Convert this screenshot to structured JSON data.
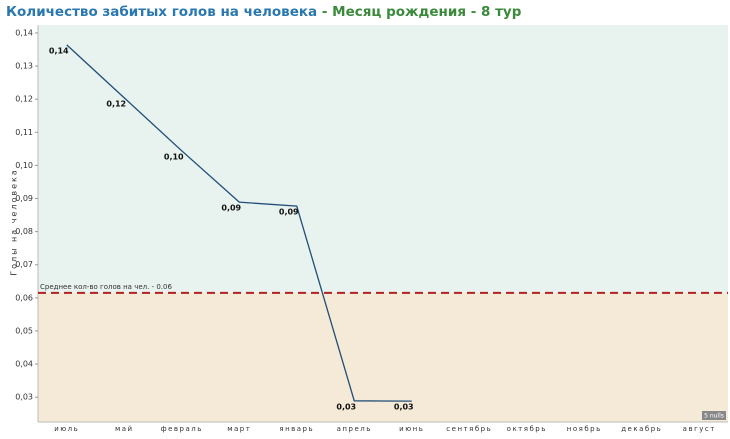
{
  "chart_data": {
    "type": "line",
    "title": "Количество забитых голов на человека",
    "title_suffix": " - Месяц рождения - 8 тур",
    "y_label": "Голы на человека",
    "categories": [
      "июль",
      "май",
      "февраль",
      "март",
      "январь",
      "апрель",
      "июнь",
      "сентябрь",
      "октябрь",
      "ноябрь",
      "декабрь",
      "август"
    ],
    "series": [
      {
        "name": "Голы на человека",
        "color": "#1f4e79",
        "values": [
          0.1364,
          0.1204,
          0.1044,
          0.0889,
          0.0877,
          0.0289,
          0.0288,
          null,
          null,
          null,
          null,
          null
        ],
        "value_labels": [
          "0,14",
          "0,12",
          "0,10",
          "0,09",
          "0,09",
          "0,03",
          "0,03",
          null,
          null,
          null,
          null,
          null
        ]
      }
    ],
    "ylim": [
      0.0225,
      0.1424
    ],
    "yticks": [
      {
        "value": 0.03,
        "label": "0,03"
      },
      {
        "value": 0.04,
        "label": "0,04"
      },
      {
        "value": 0.05,
        "label": "0,05"
      },
      {
        "value": 0.06,
        "label": "0,06"
      },
      {
        "value": 0.07,
        "label": "0,07"
      },
      {
        "value": 0.08,
        "label": "0,08"
      },
      {
        "value": 0.09,
        "label": "0,09"
      },
      {
        "value": 0.1,
        "label": "0,10"
      },
      {
        "value": 0.11,
        "label": "0,11"
      },
      {
        "value": 0.12,
        "label": "0,12"
      },
      {
        "value": 0.13,
        "label": "0,13"
      },
      {
        "value": 0.14,
        "label": "0,14"
      }
    ],
    "reference_line": {
      "value": 0.0615,
      "label": "Среднее кол-во голов на чел. - 0.06",
      "color": "#b22222"
    },
    "band_colors": {
      "above": "#e8f2ee",
      "below": "#f5e9d7"
    },
    "null_badge": "5 nulls"
  }
}
